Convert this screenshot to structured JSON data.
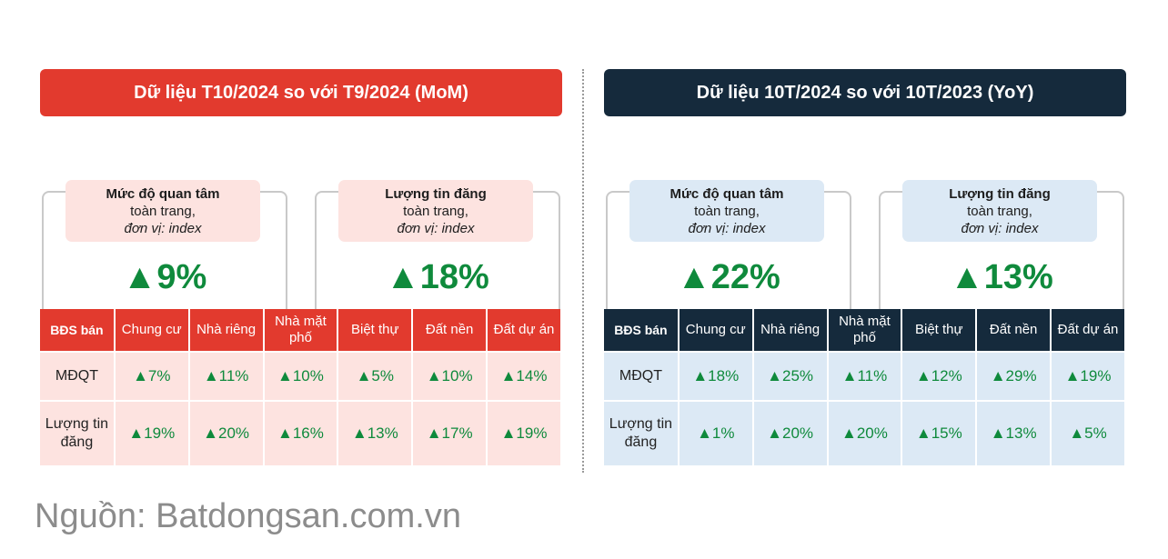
{
  "mom": {
    "title": "Dữ liệu T10/2024 so với T9/2024 (MoM)",
    "cards": [
      {
        "line1": "Mức độ quan tâm",
        "line2": "toàn trang,",
        "line3": "đơn vị: index",
        "value": "9%"
      },
      {
        "line1": "Lượng tin đăng",
        "line2": "toàn trang,",
        "line3": "đơn vị: index",
        "value": "18%"
      }
    ],
    "table": {
      "headers": [
        "BĐS bán",
        "Chung cư",
        "Nhà riêng",
        "Nhà mặt phố",
        "Biệt thự",
        "Đất nền",
        "Đất dự án"
      ],
      "rows": [
        {
          "label": "MĐQT",
          "values": [
            "7%",
            "11%",
            "10%",
            "5%",
            "10%",
            "14%"
          ]
        },
        {
          "label": "Lượng tin đăng",
          "values": [
            "19%",
            "20%",
            "16%",
            "13%",
            "17%",
            "19%"
          ]
        }
      ]
    }
  },
  "yoy": {
    "title": "Dữ liệu 10T/2024 so với 10T/2023 (YoY)",
    "cards": [
      {
        "line1": "Mức độ quan tâm",
        "line2": "toàn trang,",
        "line3": "đơn vị: index",
        "value": "22%"
      },
      {
        "line1": "Lượng tin đăng",
        "line2": "toàn trang,",
        "line3": "đơn vị: index",
        "value": "13%"
      }
    ],
    "table": {
      "headers": [
        "BĐS bán",
        "Chung cư",
        "Nhà riêng",
        "Nhà mặt phố",
        "Biệt thự",
        "Đất nền",
        "Đất dự án"
      ],
      "rows": [
        {
          "label": "MĐQT",
          "values": [
            "18%",
            "25%",
            "11%",
            "12%",
            "29%",
            "19%"
          ]
        },
        {
          "label": "Lượng tin đăng",
          "values": [
            "1%",
            "20%",
            "20%",
            "15%",
            "13%",
            "5%"
          ]
        }
      ]
    }
  },
  "up_icon": "triangle-up-icon",
  "colors": {
    "mom_accent": "#e23a2e",
    "yoy_accent": "#152a3c",
    "positive": "#0f8a3c"
  },
  "source": "Nguồn: Batdongsan.com.vn"
}
